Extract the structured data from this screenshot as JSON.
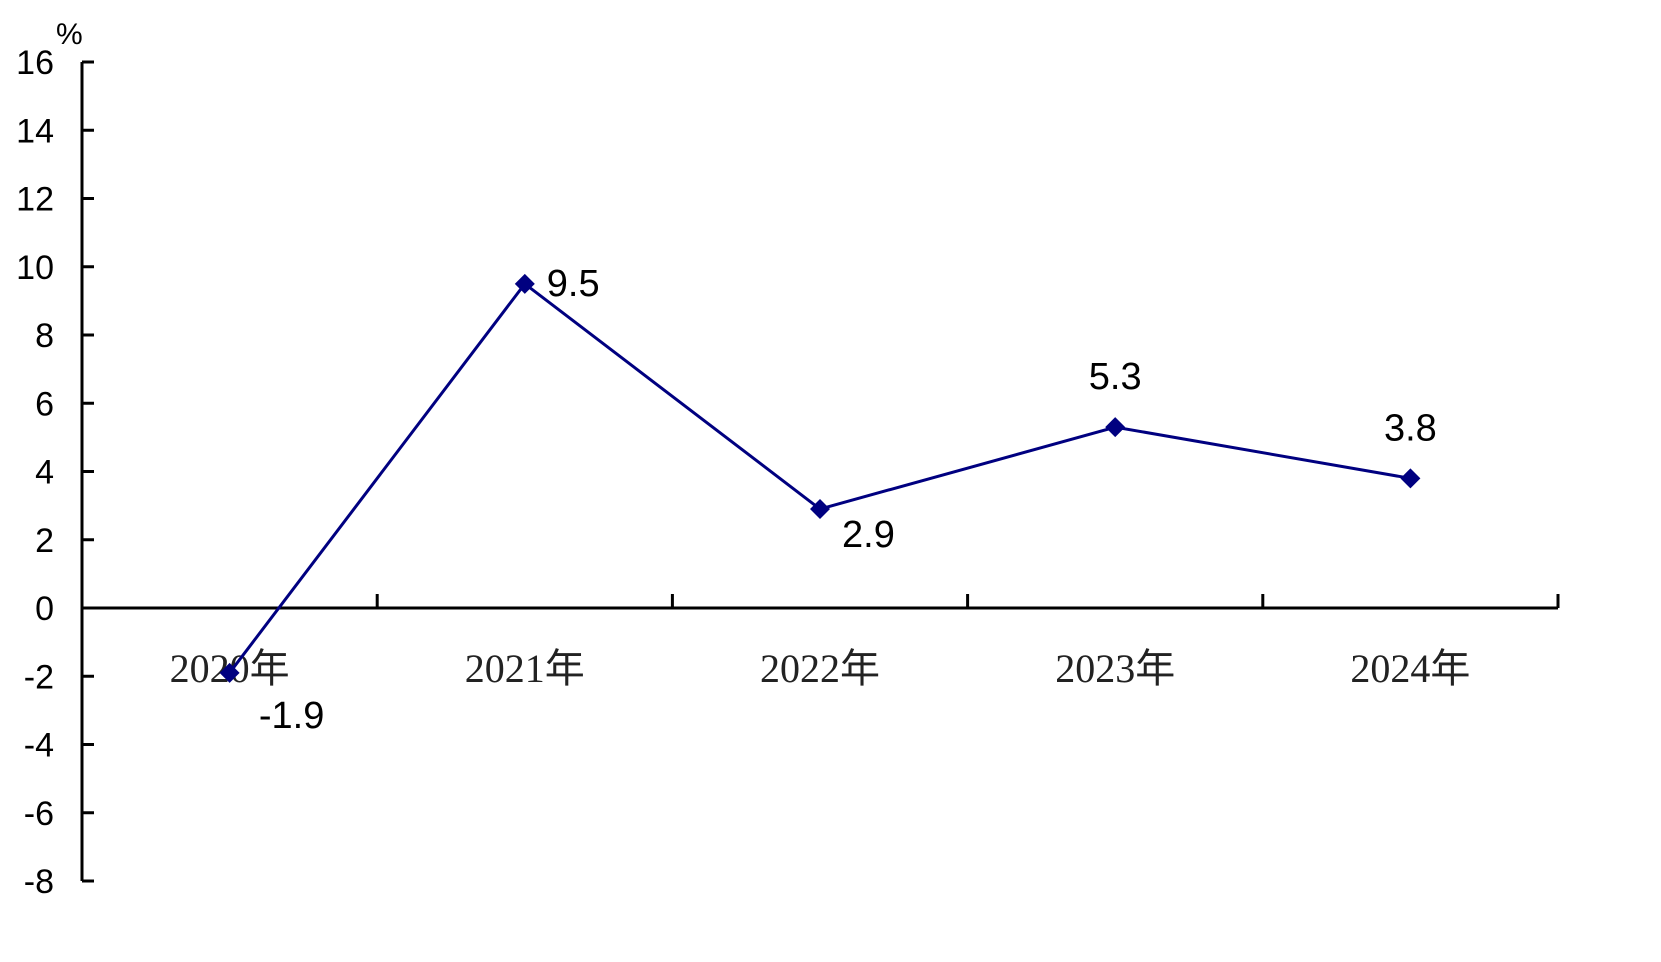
{
  "chart_data": {
    "type": "line",
    "unit_label": "%",
    "categories": [
      "2020年",
      "2021年",
      "2022年",
      "2023年",
      "2024年"
    ],
    "series": [
      {
        "values": [
          -1.9,
          9.5,
          2.9,
          5.3,
          3.8
        ]
      }
    ],
    "data_labels": [
      "-1.9",
      "9.5",
      "2.9",
      "5.3",
      "3.8"
    ],
    "ylim": [
      -8,
      16
    ],
    "yticks": [
      16,
      14,
      12,
      10,
      8,
      6,
      4,
      2,
      0,
      -2,
      -4,
      -6,
      -8
    ],
    "grid": false,
    "line_color": "#000080",
    "axis_color": "#000000"
  }
}
